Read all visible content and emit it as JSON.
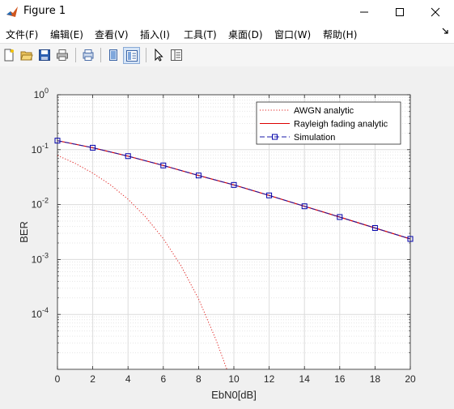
{
  "window": {
    "title": "Figure 1"
  },
  "menu": {
    "items": [
      "文件(F)",
      "编辑(E)",
      "查看(V)",
      "插入(I)",
      "工具(T)",
      "桌面(D)",
      "窗口(W)",
      "帮助(H)"
    ]
  },
  "toolbar": {
    "icons": [
      "new-figure-icon",
      "open-file-icon",
      "save-icon",
      "print-icon",
      "print-preview-icon",
      "hide-plot-tools-icon",
      "show-plot-tools-icon",
      "edit-plot-icon",
      "property-inspector-icon"
    ]
  },
  "colors": {
    "awgn": "#e0211f",
    "rayleigh": "#dd0000",
    "simulation_line": "#1a1aa8",
    "marker": "#0000aa"
  },
  "chart_data": {
    "type": "line",
    "xlabel": "EbN0[dB]",
    "ylabel": "BER",
    "xlim": [
      0,
      20
    ],
    "ylim": [
      1e-05,
      1
    ],
    "yscale": "log",
    "grid": true,
    "minor_grid": true,
    "legend_position": "top-right",
    "x_ticks": [
      "0",
      "2",
      "4",
      "6",
      "8",
      "10",
      "12",
      "14",
      "16",
      "18",
      "20"
    ],
    "y_ticks": [
      {
        "value": 1,
        "base": "10",
        "exp": "0"
      },
      {
        "value": 0.1,
        "base": "10",
        "exp": "-1"
      },
      {
        "value": 0.01,
        "base": "10",
        "exp": "-2"
      },
      {
        "value": 0.001,
        "base": "10",
        "exp": "-3"
      },
      {
        "value": 0.0001,
        "base": "10",
        "exp": "-4"
      }
    ],
    "series": [
      {
        "name": "AWGN analytic",
        "style": "dotted",
        "x": [
          0,
          1,
          2,
          3,
          4,
          5,
          6,
          7,
          8,
          9,
          9.6
        ],
        "y": [
          0.0786,
          0.0563,
          0.0375,
          0.0229,
          0.0125,
          0.00595,
          0.00239,
          0.000773,
          0.000191,
          3.36e-05,
          1e-05
        ]
      },
      {
        "name": "Rayleigh fading analytic",
        "style": "solid",
        "x": [
          0,
          2,
          4,
          6,
          8,
          10,
          12,
          14,
          16,
          18,
          20
        ],
        "y": [
          0.146,
          0.1085,
          0.0763,
          0.0516,
          0.0339,
          0.0228,
          0.0147,
          0.00931,
          0.00593,
          0.00375,
          0.00237
        ]
      },
      {
        "name": "Simulation",
        "style": "dash-square",
        "x": [
          0,
          2,
          4,
          6,
          8,
          10,
          12,
          14,
          16,
          18,
          20
        ],
        "y": [
          0.146,
          0.1085,
          0.0763,
          0.0516,
          0.0339,
          0.0228,
          0.0147,
          0.00931,
          0.00593,
          0.00375,
          0.00237
        ]
      }
    ]
  }
}
